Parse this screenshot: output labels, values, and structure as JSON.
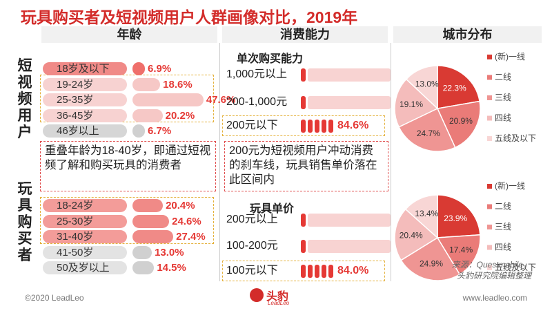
{
  "title": "玩具购买者及短视频用户人群画像对比，2019年",
  "columns": {
    "age": "年龄",
    "consumption": "消费能力",
    "city": "城市分布"
  },
  "groups": {
    "short_video": "短视频用户",
    "toy_buyers": "玩具购买者"
  },
  "notes": {
    "age_overlap": "重叠年龄为18-40岁，即通过短视频了解和购买玩具的消费者",
    "price_threshold": "200元为短视频用户冲动消费的刹车线，玩具销售单价落在此区间内"
  },
  "colors": {
    "accent": "#d32c2a",
    "highlight": "#e53935",
    "dash_yellow": "#e4b13b",
    "dash_red": "#e04c4c",
    "gray": "#cfcfcf"
  },
  "chart_data": [
    {
      "type": "bar",
      "title": "年龄",
      "group": "短视频用户",
      "categories": [
        "18岁及以下",
        "19-24岁",
        "25-35岁",
        "36-45岁",
        "46岁以上"
      ],
      "values": [
        6.9,
        18.6,
        47.6,
        20.2,
        6.7
      ],
      "labels": [
        "6.9%",
        "18.6%",
        "47.6%",
        "20.2%",
        "6.7%"
      ]
    },
    {
      "type": "bar",
      "title": "年龄",
      "group": "玩具购买者",
      "categories": [
        "18-24岁",
        "25-30岁",
        "31-40岁",
        "41-50岁",
        "50及岁以上"
      ],
      "values": [
        20.4,
        24.6,
        27.4,
        13.0,
        14.5
      ],
      "labels": [
        "20.4%",
        "24.6%",
        "27.4%",
        "13.0%",
        "14.5%"
      ]
    },
    {
      "type": "bar",
      "title": "单次购买能力",
      "group": "短视频用户",
      "categories": [
        "1,000元以上",
        "200-1,000元",
        "200元以下"
      ],
      "values": [
        7.7,
        7.7,
        84.6
      ],
      "labels": [
        "",
        "",
        "84.6%"
      ]
    },
    {
      "type": "bar",
      "title": "玩具单价",
      "group": "玩具购买者",
      "categories": [
        "200元以上",
        "100-200元",
        "100元以下"
      ],
      "values": [
        8.0,
        8.0,
        84.0
      ],
      "labels": [
        "",
        "",
        "84.0%"
      ]
    },
    {
      "type": "pie",
      "title": "城市分布",
      "group": "短视频用户",
      "categories": [
        "(新)一线",
        "二线",
        "三线",
        "四线",
        "五线及以下"
      ],
      "values": [
        22.3,
        20.9,
        24.7,
        19.1,
        13.0
      ],
      "labels": [
        "22.3%",
        "20.9%",
        "24.7%",
        "19.1%",
        "13.0%"
      ],
      "colors": [
        "#d93a33",
        "#ea7b78",
        "#ef9593",
        "#f4bcbb",
        "#f8d6d5"
      ],
      "legend": "right"
    },
    {
      "type": "pie",
      "title": "城市分布",
      "group": "玩具购买者",
      "categories": [
        "(新)一线",
        "二线",
        "三线",
        "四线",
        "五线及以下"
      ],
      "values": [
        23.9,
        17.4,
        24.9,
        20.4,
        13.4
      ],
      "labels": [
        "23.9%",
        "17.4%",
        "24.9%",
        "20.4%",
        "13.4%"
      ],
      "colors": [
        "#d93a33",
        "#ea7b78",
        "#ef9593",
        "#f4bcbb",
        "#f8d6d5"
      ],
      "legend": "right"
    }
  ],
  "source": {
    "line1": "来源：Questmobile，",
    "line2": "头豹研究院编辑整理"
  },
  "footer": {
    "copyright": "©2020 LeadLeo",
    "url": "www.leadleo.com",
    "logo_text": "头豹",
    "logo_sub": "LeadLeo"
  }
}
